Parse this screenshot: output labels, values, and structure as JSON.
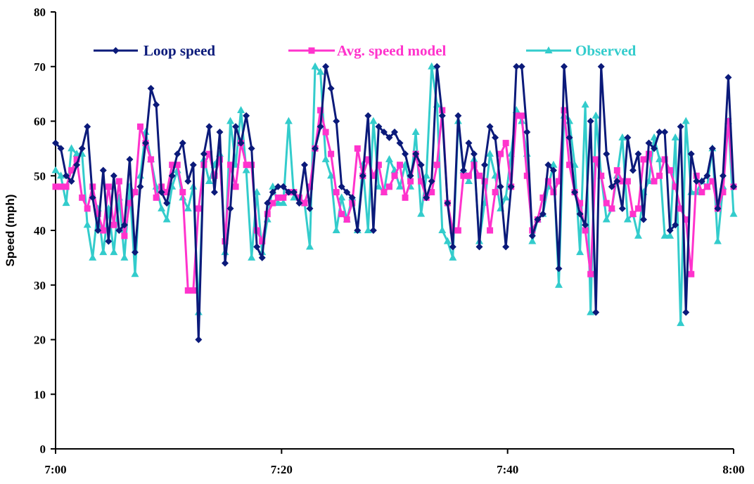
{
  "chart_data": {
    "type": "line",
    "title": "",
    "xlabel": "",
    "ylabel": "Speed (mph)",
    "ylim": [
      0,
      80
    ],
    "yticks": [
      "0",
      "10",
      "20",
      "30",
      "40",
      "50",
      "60",
      "70",
      "80"
    ],
    "xlim_minutes": [
      0,
      60
    ],
    "xtick_labels": [
      "7:00",
      "7:20",
      "7:40",
      "8:00"
    ],
    "grid": false,
    "legend_placement": "top, horizontal",
    "series": [
      {
        "name": "Loop speed",
        "color": "#0b1a7a",
        "marker": "diamond",
        "values": [
          56,
          55,
          50,
          49,
          52,
          55,
          59,
          46,
          40,
          51,
          38,
          50,
          40,
          41,
          53,
          36,
          48,
          56,
          66,
          63,
          47,
          45,
          50,
          54,
          56,
          49,
          52,
          20,
          54,
          59,
          47,
          58,
          34,
          44,
          59,
          56,
          61,
          55,
          37,
          35,
          45,
          47,
          48,
          48,
          47,
          47,
          45,
          52,
          44,
          55,
          59,
          70,
          66,
          60,
          48,
          47,
          46,
          40,
          50,
          61,
          40,
          59,
          58,
          57,
          58,
          56,
          54,
          50,
          54,
          52,
          46,
          49,
          70,
          61,
          45,
          37,
          61,
          51,
          56,
          54,
          37,
          52,
          59,
          57,
          48,
          37,
          48,
          70,
          70,
          58,
          39,
          42,
          43,
          52,
          51,
          33,
          70,
          57,
          47,
          43,
          41,
          60,
          25,
          70,
          54,
          48,
          49,
          44,
          57,
          51,
          54,
          42,
          56,
          55,
          58,
          58,
          40,
          41,
          59,
          25,
          54,
          49,
          49,
          50,
          55,
          44,
          50,
          68,
          48
        ]
      },
      {
        "name": "Avg. speed model",
        "color": "#ff33cc",
        "marker": "square",
        "values": [
          48,
          48,
          48,
          51,
          53,
          46,
          44,
          48,
          43,
          40,
          48,
          41,
          49,
          39,
          45,
          47,
          59,
          56,
          53,
          46,
          48,
          47,
          52,
          52,
          47,
          29,
          29,
          44,
          52,
          54,
          50,
          53,
          38,
          52,
          48,
          56,
          52,
          52,
          40,
          38,
          43,
          45,
          46,
          46,
          47,
          47,
          46,
          45,
          48,
          55,
          62,
          58,
          54,
          47,
          43,
          42,
          45,
          55,
          50,
          53,
          50,
          52,
          47,
          48,
          50,
          52,
          46,
          49,
          54,
          49,
          46,
          47,
          52,
          62,
          45,
          40,
          40,
          50,
          50,
          52,
          50,
          49,
          40,
          47,
          54,
          56,
          48,
          61,
          61,
          50,
          40,
          42,
          46,
          49,
          47,
          49,
          62,
          52,
          47,
          45,
          40,
          32,
          53,
          50,
          45,
          44,
          51,
          49,
          49,
          43,
          44,
          53,
          54,
          49,
          50,
          53,
          51,
          48,
          44,
          42,
          32,
          50,
          47,
          48,
          49,
          44,
          47,
          60,
          48
        ]
      },
      {
        "name": "Observed",
        "color": "#33cccc",
        "marker": "triangle",
        "values": [
          51,
          50,
          45,
          55,
          54,
          54,
          41,
          35,
          44,
          36,
          44,
          36,
          46,
          35,
          48,
          32,
          50,
          58,
          53,
          48,
          44,
          42,
          48,
          51,
          46,
          44,
          48,
          25,
          53,
          49,
          52,
          54,
          36,
          60,
          52,
          62,
          51,
          35,
          47,
          36,
          42,
          48,
          45,
          45,
          60,
          46,
          46,
          45,
          37,
          70,
          69,
          53,
          50,
          40,
          46,
          42,
          46,
          40,
          52,
          40,
          60,
          48,
          47,
          53,
          51,
          48,
          52,
          48,
          58,
          43,
          50,
          70,
          63,
          40,
          38,
          35,
          60,
          51,
          49,
          53,
          38,
          45,
          54,
          50,
          44,
          46,
          54,
          62,
          60,
          54,
          38,
          42,
          43,
          48,
          52,
          30,
          61,
          60,
          52,
          36,
          63,
          25,
          61,
          50,
          42,
          44,
          50,
          57,
          42,
          43,
          39,
          47,
          49,
          57,
          53,
          39,
          39,
          57,
          23,
          60,
          47,
          47,
          49,
          48,
          55,
          38,
          48,
          60,
          43
        ]
      }
    ]
  }
}
